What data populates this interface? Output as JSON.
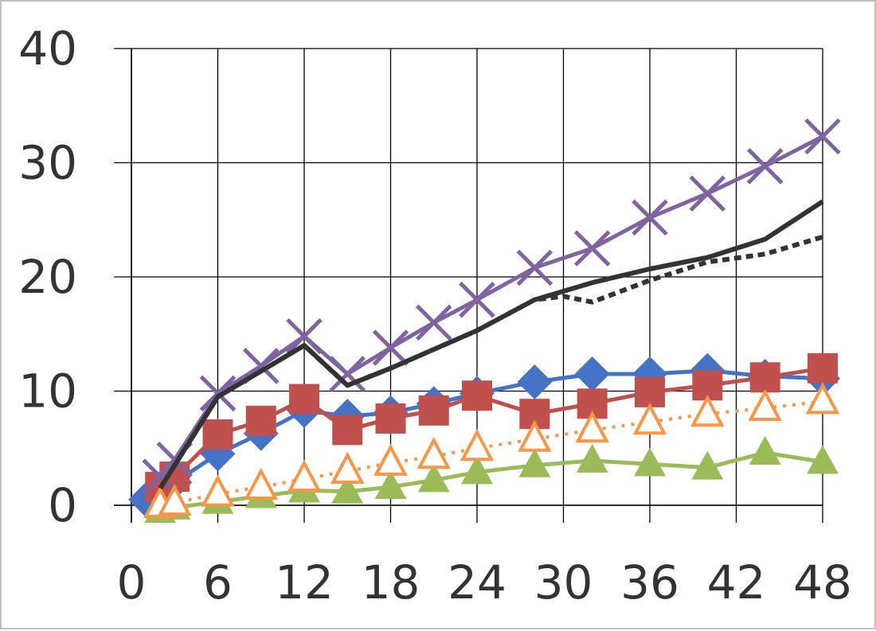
{
  "chart_data": {
    "type": "line",
    "title": "",
    "xlabel": "",
    "ylabel": "",
    "xlim": [
      0,
      48
    ],
    "ylim": [
      0,
      40
    ],
    "grid": true,
    "legend": "none",
    "x_ticks": [
      "0",
      "6",
      "12",
      "18",
      "24",
      "30",
      "36",
      "42",
      "48"
    ],
    "y_ticks": [
      "0",
      "10",
      "20",
      "30",
      "40"
    ],
    "series": [
      {
        "color": "#4472c4",
        "marker": "diamond",
        "line": "solid",
        "x": [
          1,
          3,
          6,
          9,
          12,
          15,
          18,
          21,
          24,
          28,
          32,
          36,
          40,
          44,
          48
        ],
        "y": [
          0.5,
          2.0,
          4.5,
          6.3,
          8.3,
          7.8,
          8.1,
          8.9,
          9.8,
          10.8,
          11.5,
          11.5,
          11.8,
          11.3,
          11.1
        ]
      },
      {
        "color": "#c0504d",
        "marker": "square",
        "line": "solid",
        "x": [
          2,
          3,
          6,
          9,
          12,
          15,
          18,
          21,
          24,
          28,
          32,
          36,
          40,
          44,
          48
        ],
        "y": [
          1.6,
          2.5,
          6.2,
          7.4,
          9.3,
          6.6,
          7.6,
          8.3,
          9.6,
          8.0,
          8.9,
          9.9,
          10.5,
          11.2,
          12.0
        ]
      },
      {
        "color": "#9bbb59",
        "marker": "triangle",
        "line": "solid",
        "x": [
          2,
          3,
          6,
          9,
          12,
          15,
          18,
          21,
          24,
          28,
          32,
          36,
          40,
          44,
          48
        ],
        "y": [
          -0.5,
          -0.2,
          0.3,
          0.8,
          1.3,
          1.2,
          1.6,
          2.2,
          2.9,
          3.5,
          3.9,
          3.6,
          3.3,
          4.6,
          3.8
        ]
      },
      {
        "color": "#8064a2",
        "marker": "x",
        "line": "solid",
        "x": [
          2,
          3,
          6,
          9,
          12,
          15,
          18,
          21,
          24,
          28,
          32,
          36,
          40,
          44,
          48
        ],
        "y": [
          2.5,
          4.0,
          9.8,
          12.2,
          14.8,
          11.5,
          13.8,
          16.0,
          18.0,
          20.8,
          22.5,
          25.2,
          27.3,
          29.7,
          32.3
        ]
      },
      {
        "color": "#f79646",
        "marker": "triangle-open",
        "line": "dotted",
        "x": [
          2,
          3,
          6,
          9,
          12,
          15,
          18,
          21,
          24,
          28,
          32,
          36,
          40,
          44,
          48
        ],
        "y": [
          0.0,
          0.2,
          1.0,
          1.6,
          2.3,
          3.0,
          3.7,
          4.3,
          5.0,
          5.8,
          6.6,
          7.3,
          8.0,
          8.5,
          9.1
        ]
      },
      {
        "color": "#333333",
        "marker": "none",
        "line": "solid",
        "x": [
          2,
          6,
          12,
          15,
          18,
          24,
          28,
          32,
          36,
          40,
          44,
          48
        ],
        "y": [
          1.5,
          9.5,
          14.0,
          10.5,
          12.0,
          15.3,
          18.0,
          19.5,
          20.7,
          21.7,
          23.3,
          26.6
        ]
      },
      {
        "color": "#333333",
        "marker": "none",
        "line": "dotted",
        "x": [
          2,
          6,
          12,
          15,
          18,
          24,
          28,
          30,
          32,
          36,
          40,
          44,
          48
        ],
        "y": [
          1.5,
          9.5,
          14.0,
          10.5,
          12.0,
          15.3,
          18.0,
          18.3,
          17.8,
          19.7,
          21.3,
          22.0,
          23.5
        ]
      }
    ]
  }
}
